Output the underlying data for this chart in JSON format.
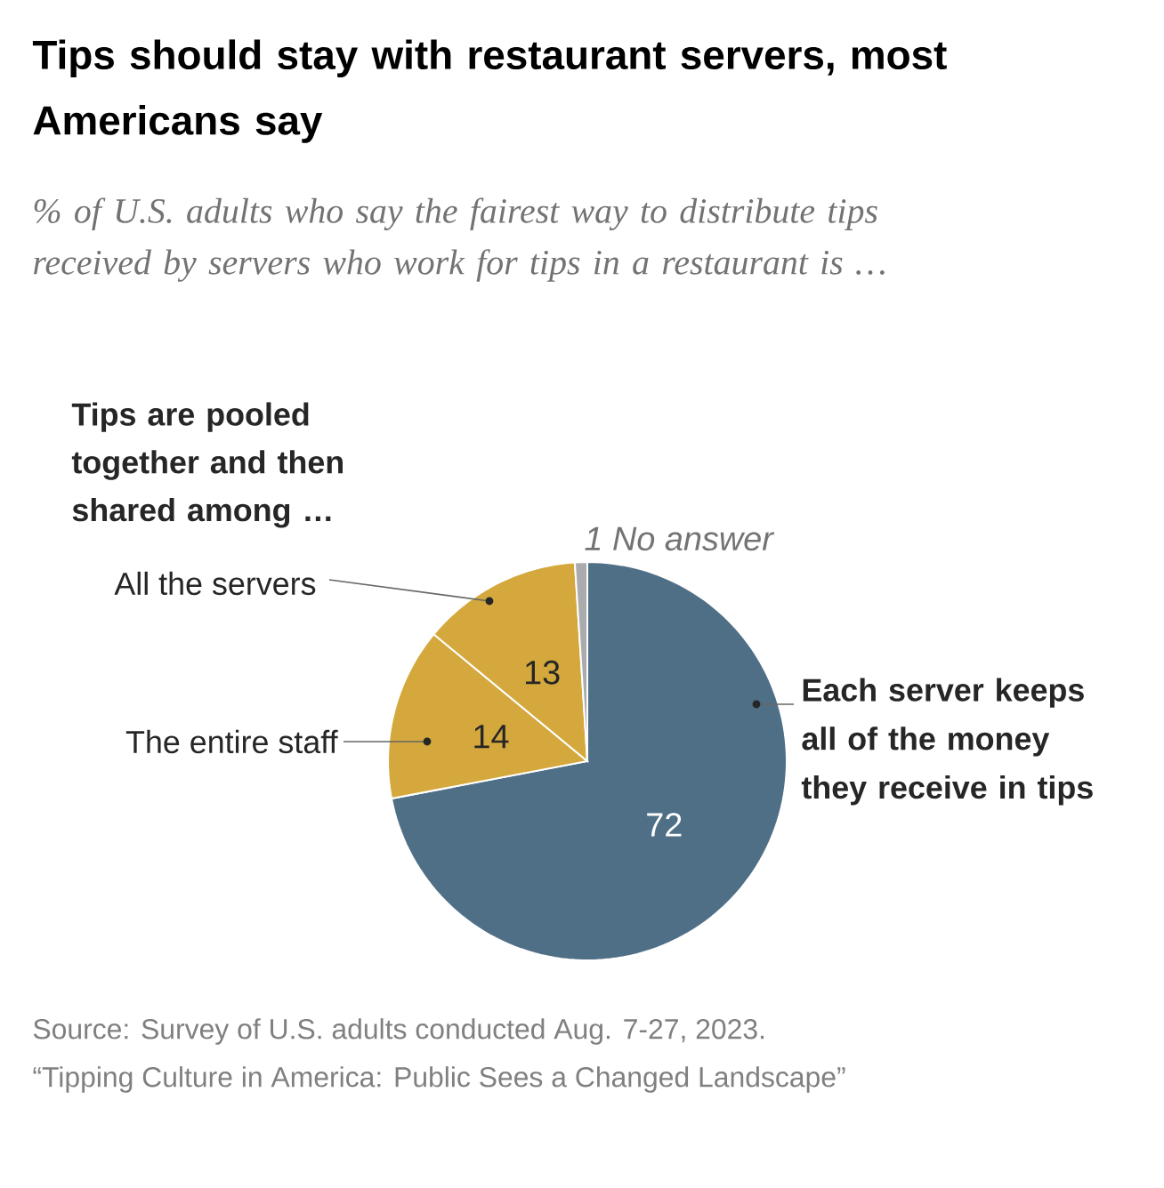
{
  "chart_data": {
    "type": "pie",
    "title": "Tips should stay with restaurant servers, most Americans say",
    "subtitle": "% of U.S. adults who say the fairest way to distribute tips received by servers who work for tips in a restaurant is …",
    "categories": [
      "Each server keeps all of the money they receive in tips",
      "The entire staff",
      "All the servers",
      "No answer"
    ],
    "values": [
      72,
      14,
      13,
      1
    ],
    "colors": [
      "#4f6f87",
      "#d4a83c",
      "#d4a83c",
      "#a9abad"
    ],
    "value_labels": [
      "72",
      "14",
      "13",
      "1"
    ],
    "annotations": [
      "Tips are pooled together and then shared among …",
      "Source: Survey of U.S. adults conducted Aug. 7-27, 2023.",
      "“Tipping Culture in America: Public Sees a Changed Landscape”"
    ]
  }
}
